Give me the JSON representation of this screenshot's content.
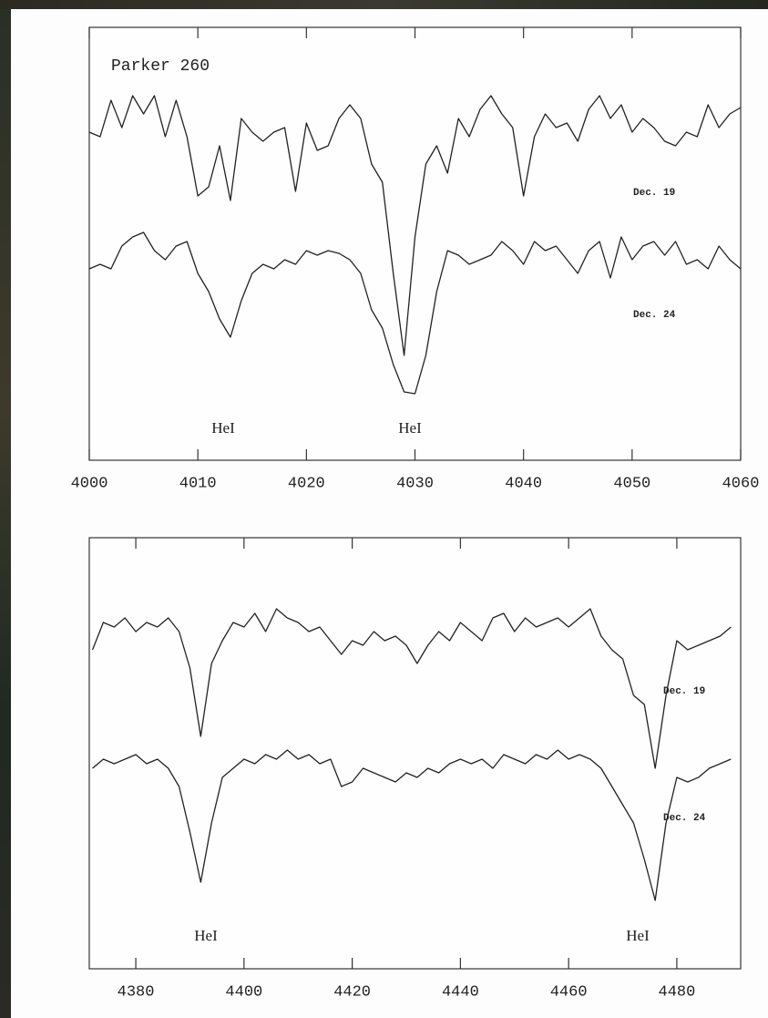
{
  "chart_data": [
    {
      "type": "line",
      "title": "Parker 260",
      "color": "#222222",
      "x": [
        4000,
        4001,
        4002,
        4003,
        4004,
        4005,
        4006,
        4007,
        4008,
        4009,
        4010,
        4011,
        4012,
        4013,
        4014,
        4015,
        4016,
        4017,
        4018,
        4019,
        4020,
        4021,
        4022,
        4023,
        4024,
        4025,
        4026,
        4027,
        4028,
        4029,
        4030,
        4031,
        4032,
        4033,
        4034,
        4035,
        4036,
        4037,
        4038,
        4039,
        4040,
        4041,
        4042,
        4043,
        4044,
        4045,
        4046,
        4047,
        4048,
        4049,
        4050,
        4051,
        4052,
        4053,
        4054,
        4055,
        4056,
        4057,
        4058,
        4059,
        4060
      ],
      "series": [
        {
          "name": "Dec. 19",
          "color": "#222222",
          "values": [
            3.6,
            3.55,
            3.95,
            3.65,
            4.0,
            3.8,
            4.0,
            3.55,
            3.95,
            3.55,
            2.9,
            3.0,
            3.45,
            2.85,
            3.75,
            3.6,
            3.5,
            3.6,
            3.65,
            2.95,
            3.7,
            3.4,
            3.45,
            3.75,
            3.9,
            3.75,
            3.25,
            3.05,
            2.05,
            1.15,
            2.45,
            3.25,
            3.45,
            3.15,
            3.75,
            3.55,
            3.85,
            4.0,
            3.8,
            3.65,
            2.9,
            3.55,
            3.8,
            3.65,
            3.7,
            3.5,
            3.85,
            4.0,
            3.75,
            3.9,
            3.6,
            3.75,
            3.65,
            3.5,
            3.45,
            3.6,
            3.55,
            3.9,
            3.65,
            3.8,
            3.87
          ]
        },
        {
          "name": "Dec. 24",
          "color": "#222222",
          "values": [
            2.1,
            2.15,
            2.1,
            2.35,
            2.45,
            2.5,
            2.3,
            2.2,
            2.35,
            2.4,
            2.05,
            1.85,
            1.55,
            1.35,
            1.75,
            2.05,
            2.15,
            2.1,
            2.2,
            2.15,
            2.3,
            2.25,
            2.3,
            2.27,
            2.2,
            2.05,
            1.65,
            1.45,
            1.05,
            0.75,
            0.73,
            1.15,
            1.85,
            2.3,
            2.25,
            2.15,
            2.2,
            2.25,
            2.4,
            2.3,
            2.15,
            2.4,
            2.3,
            2.35,
            2.2,
            2.05,
            2.3,
            2.4,
            2.0,
            2.45,
            2.2,
            2.35,
            2.4,
            2.25,
            2.4,
            2.15,
            2.2,
            2.1,
            2.35,
            2.2,
            2.1
          ]
        }
      ],
      "annotations": [
        "HeI",
        "HeI"
      ],
      "xlim": [
        4000,
        4060
      ],
      "xticks": [
        4000,
        4010,
        4020,
        4030,
        4040,
        4050,
        4060
      ],
      "ylim": [
        0,
        4.75
      ]
    },
    {
      "type": "line",
      "color": "#222222",
      "x": [
        4372,
        4374,
        4376,
        4378,
        4380,
        4382,
        4384,
        4386,
        4388,
        4390,
        4392,
        4394,
        4396,
        4398,
        4400,
        4402,
        4404,
        4406,
        4408,
        4410,
        4412,
        4414,
        4416,
        4418,
        4420,
        4422,
        4424,
        4426,
        4428,
        4430,
        4432,
        4434,
        4436,
        4438,
        4440,
        4442,
        4444,
        4446,
        4448,
        4450,
        4452,
        4454,
        4456,
        4458,
        4460,
        4462,
        4464,
        4466,
        4468,
        4470,
        4472,
        4474,
        4476,
        4478,
        4480,
        4482,
        4484,
        4486,
        4488,
        4490
      ],
      "series": [
        {
          "name": "Dec. 19",
          "color": "#222222",
          "values": [
            3.5,
            3.8,
            3.75,
            3.85,
            3.7,
            3.8,
            3.75,
            3.85,
            3.7,
            3.3,
            2.55,
            3.35,
            3.6,
            3.8,
            3.75,
            3.9,
            3.7,
            3.95,
            3.85,
            3.8,
            3.7,
            3.75,
            3.6,
            3.45,
            3.6,
            3.55,
            3.7,
            3.6,
            3.65,
            3.55,
            3.35,
            3.55,
            3.7,
            3.6,
            3.8,
            3.7,
            3.6,
            3.85,
            3.9,
            3.7,
            3.85,
            3.75,
            3.8,
            3.85,
            3.75,
            3.85,
            3.95,
            3.65,
            3.5,
            3.4,
            3.0,
            2.9,
            2.2,
            3.0,
            3.6,
            3.5,
            3.55,
            3.6,
            3.65,
            3.75
          ]
        },
        {
          "name": "Dec. 24",
          "color": "#222222",
          "values": [
            2.2,
            2.3,
            2.25,
            2.3,
            2.35,
            2.25,
            2.3,
            2.2,
            2.0,
            1.5,
            0.95,
            1.6,
            2.1,
            2.2,
            2.3,
            2.25,
            2.35,
            2.3,
            2.4,
            2.3,
            2.35,
            2.25,
            2.3,
            2.0,
            2.05,
            2.2,
            2.15,
            2.1,
            2.05,
            2.15,
            2.1,
            2.2,
            2.15,
            2.25,
            2.3,
            2.25,
            2.3,
            2.2,
            2.35,
            2.3,
            2.25,
            2.35,
            2.3,
            2.4,
            2.3,
            2.35,
            2.3,
            2.2,
            2.0,
            1.8,
            1.6,
            1.2,
            0.75,
            1.6,
            2.1,
            2.05,
            2.1,
            2.2,
            2.25,
            2.3
          ]
        }
      ],
      "annotations": [
        "HeI",
        "HeI"
      ],
      "xlim": [
        4371.4,
        4491.8
      ],
      "xticks": [
        4380,
        4400,
        4420,
        4440,
        4460,
        4480
      ],
      "ylim": [
        0,
        4.73
      ]
    }
  ]
}
